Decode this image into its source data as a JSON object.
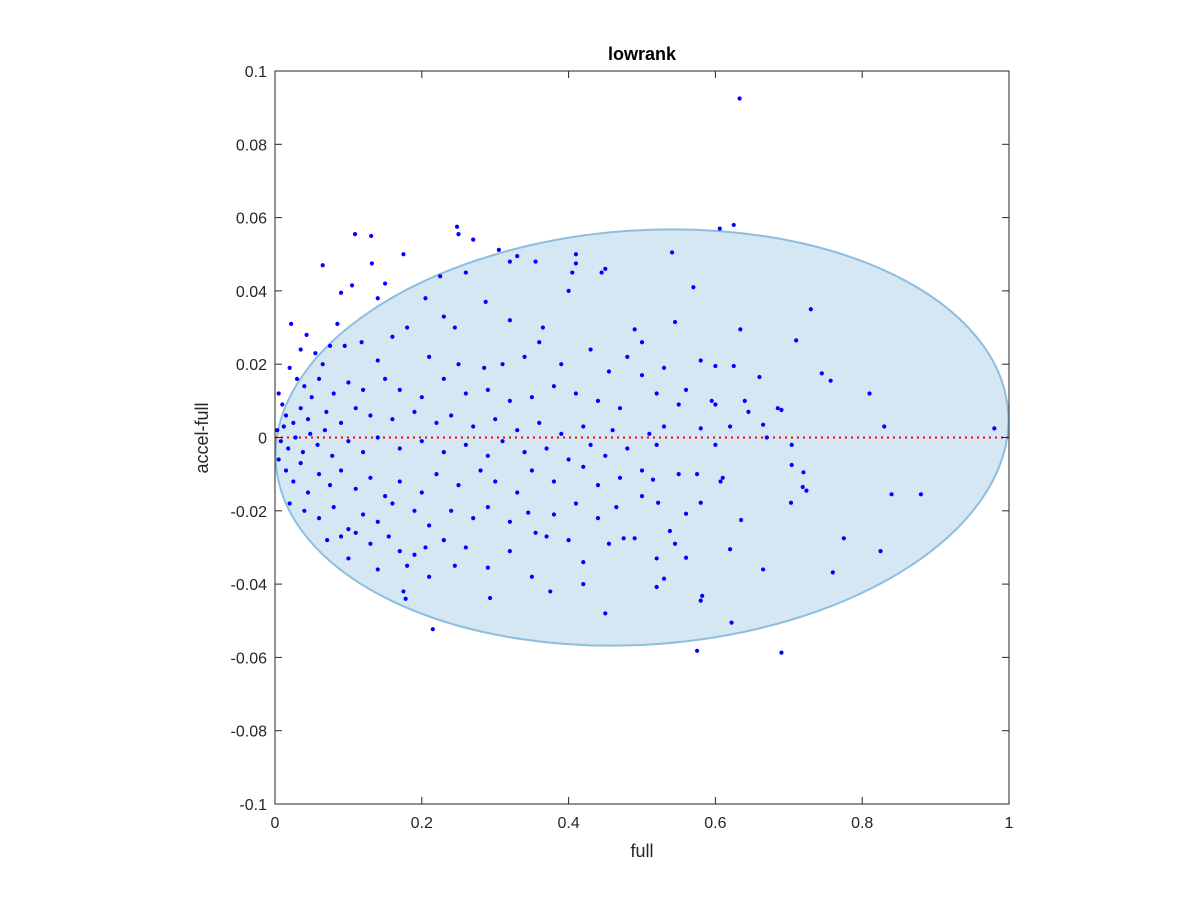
{
  "chart_data": {
    "type": "scatter",
    "title": "lowrank",
    "xlabel": "full",
    "ylabel": "accel-full",
    "xlim": [
      0,
      1
    ],
    "ylim": [
      -0.1,
      0.1
    ],
    "xticks": [
      "0",
      "0.2",
      "0.4",
      "0.6",
      "0.8",
      "1"
    ],
    "xtick_values": [
      0,
      0.2,
      0.4,
      0.6,
      0.8,
      1
    ],
    "yticks": [
      "-0.1",
      "-0.08",
      "-0.06",
      "-0.04",
      "-0.02",
      "0",
      "0.02",
      "0.04",
      "0.06",
      "0.08",
      "0.1"
    ],
    "ytick_values": [
      -0.1,
      -0.08,
      -0.06,
      -0.04,
      -0.02,
      0,
      0.02,
      0.04,
      0.06,
      0.08,
      0.1
    ],
    "grid": false,
    "reference_line": {
      "y": 0,
      "style": "dotted",
      "color": "#ff0000"
    },
    "ellipse": {
      "cx": 0.5,
      "cy": 0,
      "rx": 0.5,
      "ry": 0.0565,
      "rotation_deg": -4,
      "fill": "#d6e7f4",
      "stroke": "#8dbedf"
    },
    "point_color": "#0000ff",
    "points": [
      [
        0.633,
        0.0925
      ],
      [
        0.625,
        0.058
      ],
      [
        0.606,
        0.057
      ],
      [
        0.248,
        0.0575
      ],
      [
        0.109,
        0.0555
      ],
      [
        0.131,
        0.055
      ],
      [
        0.25,
        0.0555
      ],
      [
        0.175,
        0.05
      ],
      [
        0.305,
        0.0512
      ],
      [
        0.27,
        0.054
      ],
      [
        0.41,
        0.05
      ],
      [
        0.541,
        0.0505
      ],
      [
        0.065,
        0.047
      ],
      [
        0.32,
        0.048
      ],
      [
        0.33,
        0.0495
      ],
      [
        0.355,
        0.048
      ],
      [
        0.41,
        0.0475
      ],
      [
        0.45,
        0.046
      ],
      [
        0.132,
        0.0475
      ],
      [
        0.09,
        0.0395
      ],
      [
        0.105,
        0.0415
      ],
      [
        0.14,
        0.038
      ],
      [
        0.15,
        0.042
      ],
      [
        0.205,
        0.038
      ],
      [
        0.225,
        0.044
      ],
      [
        0.26,
        0.045
      ],
      [
        0.287,
        0.037
      ],
      [
        0.405,
        0.045
      ],
      [
        0.4,
        0.04
      ],
      [
        0.445,
        0.045
      ],
      [
        0.57,
        0.041
      ],
      [
        0.634,
        0.0295
      ],
      [
        0.73,
        0.035
      ],
      [
        0.71,
        0.0265
      ],
      [
        0.49,
        0.0295
      ],
      [
        0.5,
        0.026
      ],
      [
        0.545,
        0.0315
      ],
      [
        0.32,
        0.032
      ],
      [
        0.365,
        0.03
      ],
      [
        0.23,
        0.033
      ],
      [
        0.245,
        0.03
      ],
      [
        0.18,
        0.03
      ],
      [
        0.16,
        0.0275
      ],
      [
        0.085,
        0.031
      ],
      [
        0.095,
        0.025
      ],
      [
        0.118,
        0.026
      ],
      [
        0.022,
        0.031
      ],
      [
        0.043,
        0.028
      ],
      [
        0.035,
        0.024
      ],
      [
        0.055,
        0.023
      ],
      [
        0.065,
        0.02
      ],
      [
        0.075,
        0.025
      ],
      [
        0.14,
        0.021
      ],
      [
        0.21,
        0.022
      ],
      [
        0.25,
        0.02
      ],
      [
        0.285,
        0.019
      ],
      [
        0.31,
        0.02
      ],
      [
        0.34,
        0.022
      ],
      [
        0.36,
        0.026
      ],
      [
        0.39,
        0.02
      ],
      [
        0.43,
        0.024
      ],
      [
        0.455,
        0.018
      ],
      [
        0.48,
        0.022
      ],
      [
        0.5,
        0.017
      ],
      [
        0.53,
        0.019
      ],
      [
        0.58,
        0.021
      ],
      [
        0.6,
        0.0195
      ],
      [
        0.625,
        0.0195
      ],
      [
        0.66,
        0.0165
      ],
      [
        0.745,
        0.0175
      ],
      [
        0.757,
        0.0155
      ],
      [
        0.81,
        0.012
      ],
      [
        0.02,
        0.019
      ],
      [
        0.03,
        0.016
      ],
      [
        0.04,
        0.014
      ],
      [
        0.06,
        0.016
      ],
      [
        0.08,
        0.012
      ],
      [
        0.1,
        0.015
      ],
      [
        0.12,
        0.013
      ],
      [
        0.15,
        0.016
      ],
      [
        0.17,
        0.013
      ],
      [
        0.2,
        0.011
      ],
      [
        0.23,
        0.016
      ],
      [
        0.26,
        0.012
      ],
      [
        0.29,
        0.013
      ],
      [
        0.32,
        0.01
      ],
      [
        0.35,
        0.011
      ],
      [
        0.38,
        0.014
      ],
      [
        0.41,
        0.012
      ],
      [
        0.44,
        0.01
      ],
      [
        0.47,
        0.008
      ],
      [
        0.52,
        0.012
      ],
      [
        0.55,
        0.009
      ],
      [
        0.56,
        0.013
      ],
      [
        0.6,
        0.009
      ],
      [
        0.64,
        0.01
      ],
      [
        0.645,
        0.007
      ],
      [
        0.685,
        0.008
      ],
      [
        0.69,
        0.0075
      ],
      [
        0.595,
        0.01
      ],
      [
        0.005,
        0.012
      ],
      [
        0.01,
        0.009
      ],
      [
        0.015,
        0.006
      ],
      [
        0.025,
        0.004
      ],
      [
        0.035,
        0.008
      ],
      [
        0.045,
        0.005
      ],
      [
        0.05,
        0.011
      ],
      [
        0.07,
        0.007
      ],
      [
        0.09,
        0.004
      ],
      [
        0.11,
        0.008
      ],
      [
        0.13,
        0.006
      ],
      [
        0.16,
        0.005
      ],
      [
        0.19,
        0.007
      ],
      [
        0.22,
        0.004
      ],
      [
        0.24,
        0.006
      ],
      [
        0.27,
        0.003
      ],
      [
        0.3,
        0.005
      ],
      [
        0.33,
        0.002
      ],
      [
        0.36,
        0.004
      ],
      [
        0.39,
        0.001
      ],
      [
        0.42,
        0.003
      ],
      [
        0.46,
        0.002
      ],
      [
        0.51,
        0.001
      ],
      [
        0.53,
        0.003
      ],
      [
        0.58,
        0.0025
      ],
      [
        0.62,
        0.003
      ],
      [
        0.665,
        0.0035
      ],
      [
        0.83,
        0.003
      ],
      [
        0.98,
        0.0025
      ],
      [
        0.67,
        0.0
      ],
      [
        0.704,
        -0.002
      ],
      [
        0.003,
        0.002
      ],
      [
        0.008,
        -0.001
      ],
      [
        0.012,
        0.003
      ],
      [
        0.018,
        -0.003
      ],
      [
        0.028,
        0.0
      ],
      [
        0.038,
        -0.004
      ],
      [
        0.048,
        0.001
      ],
      [
        0.058,
        -0.002
      ],
      [
        0.068,
        0.002
      ],
      [
        0.078,
        -0.005
      ],
      [
        0.1,
        -0.001
      ],
      [
        0.12,
        -0.004
      ],
      [
        0.14,
        0.0
      ],
      [
        0.17,
        -0.003
      ],
      [
        0.2,
        -0.001
      ],
      [
        0.23,
        -0.004
      ],
      [
        0.26,
        -0.002
      ],
      [
        0.29,
        -0.005
      ],
      [
        0.31,
        -0.001
      ],
      [
        0.34,
        -0.004
      ],
      [
        0.37,
        -0.003
      ],
      [
        0.4,
        -0.006
      ],
      [
        0.43,
        -0.002
      ],
      [
        0.45,
        -0.005
      ],
      [
        0.48,
        -0.003
      ],
      [
        0.52,
        -0.002
      ],
      [
        0.6,
        -0.002
      ],
      [
        0.55,
        -0.01
      ],
      [
        0.61,
        -0.011
      ],
      [
        0.704,
        -0.0075
      ],
      [
        0.72,
        -0.0095
      ],
      [
        0.005,
        -0.006
      ],
      [
        0.015,
        -0.009
      ],
      [
        0.025,
        -0.012
      ],
      [
        0.035,
        -0.007
      ],
      [
        0.045,
        -0.015
      ],
      [
        0.06,
        -0.01
      ],
      [
        0.075,
        -0.013
      ],
      [
        0.09,
        -0.009
      ],
      [
        0.11,
        -0.014
      ],
      [
        0.13,
        -0.011
      ],
      [
        0.15,
        -0.016
      ],
      [
        0.17,
        -0.012
      ],
      [
        0.2,
        -0.015
      ],
      [
        0.22,
        -0.01
      ],
      [
        0.25,
        -0.013
      ],
      [
        0.28,
        -0.009
      ],
      [
        0.3,
        -0.012
      ],
      [
        0.33,
        -0.015
      ],
      [
        0.35,
        -0.009
      ],
      [
        0.38,
        -0.012
      ],
      [
        0.42,
        -0.008
      ],
      [
        0.44,
        -0.013
      ],
      [
        0.47,
        -0.011
      ],
      [
        0.5,
        -0.009
      ],
      [
        0.515,
        -0.0115
      ],
      [
        0.575,
        -0.01
      ],
      [
        0.607,
        -0.012
      ],
      [
        0.703,
        -0.0178
      ],
      [
        0.719,
        -0.0135
      ],
      [
        0.724,
        -0.0145
      ],
      [
        0.84,
        -0.0155
      ],
      [
        0.88,
        -0.0155
      ],
      [
        0.02,
        -0.018
      ],
      [
        0.04,
        -0.02
      ],
      [
        0.06,
        -0.022
      ],
      [
        0.08,
        -0.019
      ],
      [
        0.1,
        -0.025
      ],
      [
        0.12,
        -0.021
      ],
      [
        0.14,
        -0.023
      ],
      [
        0.16,
        -0.018
      ],
      [
        0.19,
        -0.02
      ],
      [
        0.21,
        -0.024
      ],
      [
        0.24,
        -0.02
      ],
      [
        0.27,
        -0.022
      ],
      [
        0.29,
        -0.019
      ],
      [
        0.32,
        -0.023
      ],
      [
        0.345,
        -0.0205
      ],
      [
        0.38,
        -0.021
      ],
      [
        0.41,
        -0.018
      ],
      [
        0.44,
        -0.022
      ],
      [
        0.465,
        -0.019
      ],
      [
        0.5,
        -0.016
      ],
      [
        0.522,
        -0.0178
      ],
      [
        0.538,
        -0.0255
      ],
      [
        0.56,
        -0.0208
      ],
      [
        0.58,
        -0.0178
      ],
      [
        0.635,
        -0.0225
      ],
      [
        0.071,
        -0.028
      ],
      [
        0.09,
        -0.027
      ],
      [
        0.11,
        -0.026
      ],
      [
        0.13,
        -0.029
      ],
      [
        0.155,
        -0.027
      ],
      [
        0.17,
        -0.031
      ],
      [
        0.19,
        -0.032
      ],
      [
        0.205,
        -0.03
      ],
      [
        0.23,
        -0.028
      ],
      [
        0.26,
        -0.03
      ],
      [
        0.32,
        -0.031
      ],
      [
        0.355,
        -0.026
      ],
      [
        0.37,
        -0.027
      ],
      [
        0.4,
        -0.028
      ],
      [
        0.42,
        -0.034
      ],
      [
        0.455,
        -0.029
      ],
      [
        0.475,
        -0.0275
      ],
      [
        0.49,
        -0.0275
      ],
      [
        0.52,
        -0.033
      ],
      [
        0.545,
        -0.029
      ],
      [
        0.62,
        -0.0305
      ],
      [
        0.775,
        -0.0275
      ],
      [
        0.825,
        -0.031
      ],
      [
        0.1,
        -0.033
      ],
      [
        0.14,
        -0.036
      ],
      [
        0.18,
        -0.035
      ],
      [
        0.21,
        -0.038
      ],
      [
        0.245,
        -0.035
      ],
      [
        0.29,
        -0.0355
      ],
      [
        0.35,
        -0.038
      ],
      [
        0.375,
        -0.042
      ],
      [
        0.42,
        -0.04
      ],
      [
        0.52,
        -0.0408
      ],
      [
        0.53,
        -0.0385
      ],
      [
        0.56,
        -0.0328
      ],
      [
        0.665,
        -0.036
      ],
      [
        0.76,
        -0.0368
      ],
      [
        0.175,
        -0.042
      ],
      [
        0.178,
        -0.044
      ],
      [
        0.293,
        -0.0438
      ],
      [
        0.45,
        -0.048
      ],
      [
        0.58,
        -0.0445
      ],
      [
        0.582,
        -0.0432
      ],
      [
        0.622,
        -0.0505
      ],
      [
        0.215,
        -0.0523
      ],
      [
        0.575,
        -0.0582
      ],
      [
        0.69,
        -0.0587
      ]
    ]
  }
}
